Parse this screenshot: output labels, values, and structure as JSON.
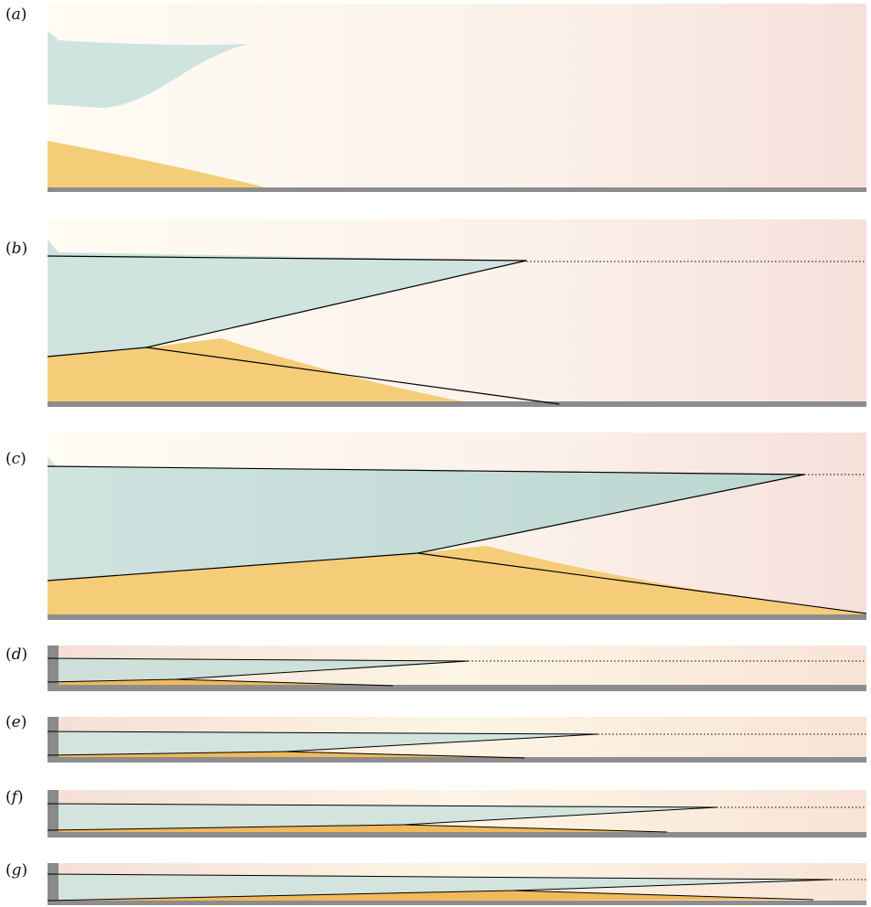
{
  "figure": {
    "panels": [
      {
        "id": "a",
        "label_open": "(",
        "label_letter": "a",
        "label_close": ")"
      },
      {
        "id": "b",
        "label_open": "(",
        "label_letter": "b",
        "label_close": ")"
      },
      {
        "id": "c",
        "label_open": "(",
        "label_letter": "c",
        "label_close": ")"
      },
      {
        "id": "d",
        "label_open": "(",
        "label_letter": "d",
        "label_close": ")"
      },
      {
        "id": "e",
        "label_open": "(",
        "label_letter": "e",
        "label_close": ")"
      },
      {
        "id": "f",
        "label_open": "(",
        "label_letter": "f",
        "label_close": ")"
      },
      {
        "id": "g",
        "label_open": "(",
        "label_letter": "g",
        "label_close": ")"
      }
    ],
    "colors": {
      "blue_fluid": "#cfe3df",
      "blue_fluid_dark": "#bcd6d2",
      "yellow_fluid": "#f5cd79",
      "yellow_fluid_dark": "#f1b95a",
      "background_left": "#fdf6ea",
      "background_right": "#f7e2dc",
      "tank_floor": "#8d8d8d",
      "overlay_line": "#000000"
    }
  }
}
